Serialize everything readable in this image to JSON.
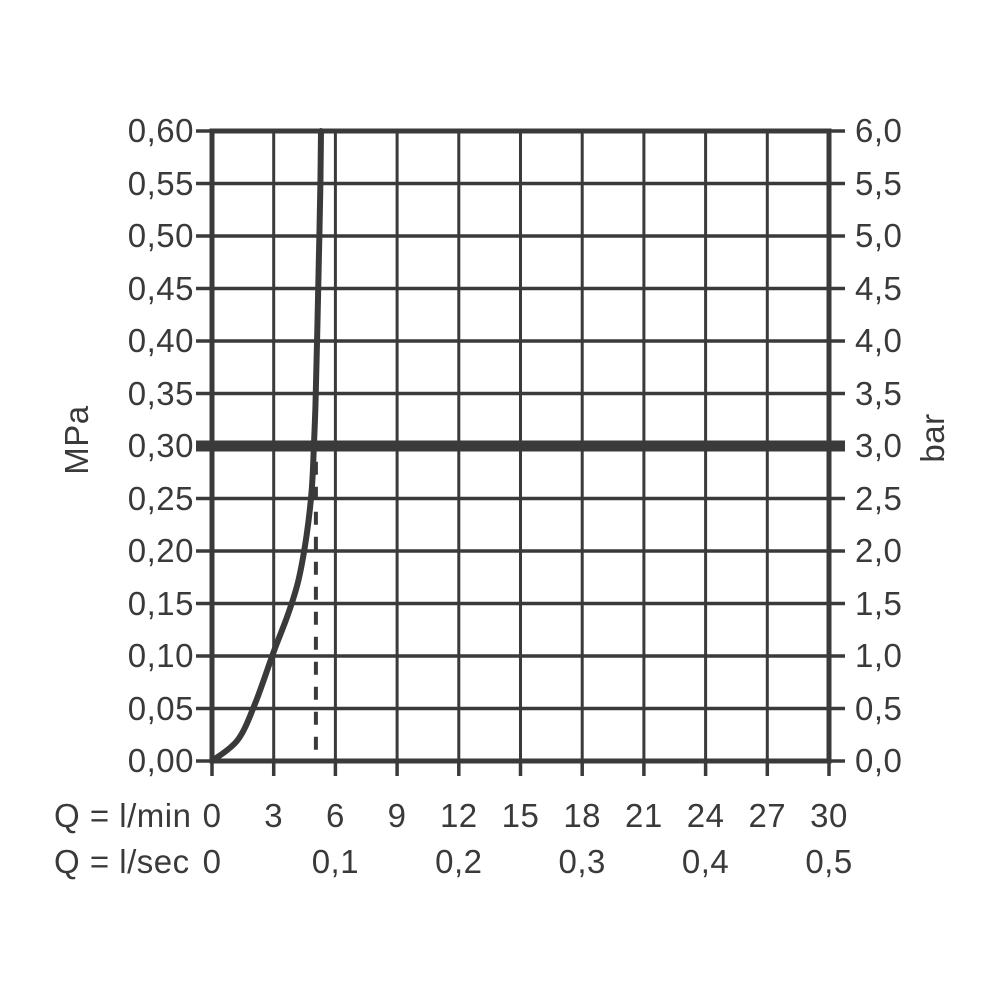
{
  "colors": {
    "ink": "#3a3a3a",
    "background": "#ffffff"
  },
  "chart_data": {
    "type": "line",
    "title": "",
    "left_axis": {
      "label": "MPa",
      "min": 0.0,
      "max": 0.6,
      "step": 0.05,
      "tick_labels": [
        "0,60",
        "0,55",
        "0,50",
        "0,45",
        "0,40",
        "0,35",
        "0,30",
        "0,25",
        "0,20",
        "0,15",
        "0,10",
        "0,05",
        "0,00"
      ]
    },
    "right_axis": {
      "label": "bar",
      "min": 0.0,
      "max": 6.0,
      "step": 0.5,
      "tick_labels": [
        "6,0",
        "5,5",
        "5,0",
        "4,5",
        "4,0",
        "3,5",
        "3,0",
        "2,5",
        "2,0",
        "1,5",
        "1,0",
        "0,5",
        "0,0"
      ]
    },
    "x_axis_primary": {
      "label": "Q = l/min",
      "min": 0,
      "max": 30,
      "step": 3,
      "tick_labels": [
        "0",
        "3",
        "6",
        "9",
        "12",
        "15",
        "18",
        "21",
        "24",
        "27",
        "30"
      ]
    },
    "x_axis_secondary": {
      "label": "Q = l/sec",
      "ticks": [
        {
          "at_lmin": 0,
          "label": "0"
        },
        {
          "at_lmin": 6,
          "label": "0,1"
        },
        {
          "at_lmin": 12,
          "label": "0,2"
        },
        {
          "at_lmin": 18,
          "label": "0,3"
        },
        {
          "at_lmin": 24,
          "label": "0,4"
        },
        {
          "at_lmin": 30,
          "label": "0,5"
        }
      ]
    },
    "grid": {
      "x_step_lmin": 3,
      "y_step_mpa": 0.05,
      "grid_on": true
    },
    "reference_line": {
      "mpa": 0.3,
      "bar": 3.0
    },
    "dashed_guide": {
      "at_lmin": 5.05,
      "from_mpa": 0.0,
      "to_mpa": 0.285
    },
    "curve_points_lmin_mpa": [
      [
        0,
        0
      ],
      [
        1.25,
        0.02
      ],
      [
        2.1,
        0.055
      ],
      [
        3.0,
        0.104
      ],
      [
        3.7,
        0.14
      ],
      [
        4.2,
        0.172
      ],
      [
        4.6,
        0.215
      ],
      [
        4.85,
        0.258
      ],
      [
        4.95,
        0.298
      ],
      [
        5.03,
        0.34
      ],
      [
        5.12,
        0.41
      ],
      [
        5.2,
        0.48
      ],
      [
        5.27,
        0.55
      ],
      [
        5.3,
        0.6
      ]
    ],
    "flow_at_3bar_lmin": 5
  }
}
